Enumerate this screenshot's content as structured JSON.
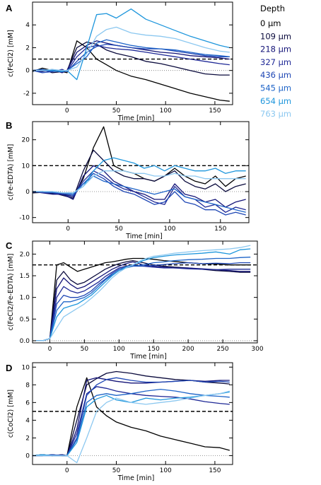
{
  "legend": {
    "title": "Depth",
    "entries": [
      {
        "label": "0  µm",
        "color": "#000000"
      },
      {
        "label": "109 µm",
        "color": "#0a0a3c"
      },
      {
        "label": "218 µm",
        "color": "#141478"
      },
      {
        "label": "327 µm",
        "color": "#1e2896"
      },
      {
        "label": "436 µm",
        "color": "#1e46b4"
      },
      {
        "label": "545 µm",
        "color": "#1e64c8"
      },
      {
        "label": "654 µm",
        "color": "#1e96dc"
      },
      {
        "label": "763 µm",
        "color": "#8cc8f0"
      }
    ]
  },
  "chart_data": [
    {
      "type": "line",
      "panel": "A",
      "xlabel": "Time [min]",
      "ylabel": "c(FeCl2) [mM]",
      "xlim": [
        -35,
        168
      ],
      "ylim": [
        -3,
        6
      ],
      "xticks": [
        0,
        50,
        100,
        150
      ],
      "yticks": [
        -2,
        0,
        2,
        4
      ],
      "hline_dashed": 1,
      "hline_dotted": 0,
      "x": [
        -35,
        -25,
        -15,
        -5,
        0,
        10,
        20,
        30,
        40,
        50,
        65,
        80,
        95,
        110,
        125,
        140,
        155,
        165
      ],
      "series": [
        {
          "color": "#000000",
          "values": [
            -0.1,
            0.2,
            0.0,
            -0.1,
            -0.2,
            2.6,
            2.0,
            1.0,
            0.5,
            0.0,
            -0.5,
            -0.8,
            -1.2,
            -1.6,
            -2.0,
            -2.3,
            -2.6,
            -2.7
          ]
        },
        {
          "color": "#0a0a3c",
          "values": [
            0.0,
            0.1,
            -0.2,
            -0.1,
            0.0,
            2.0,
            2.5,
            2.3,
            1.8,
            1.5,
            1.2,
            0.8,
            0.6,
            0.3,
            0.0,
            -0.3,
            -0.4,
            -0.4
          ]
        },
        {
          "color": "#141478",
          "values": [
            0.0,
            -0.1,
            0.1,
            -0.2,
            0.0,
            1.6,
            2.2,
            2.6,
            2.4,
            2.2,
            2.0,
            1.8,
            1.6,
            1.5,
            1.3,
            1.2,
            1.1,
            1.0
          ]
        },
        {
          "color": "#1e2896",
          "values": [
            0.0,
            0.0,
            -0.1,
            0.1,
            -0.1,
            1.2,
            2.0,
            2.2,
            2.0,
            1.9,
            1.8,
            1.6,
            1.4,
            1.2,
            1.0,
            0.8,
            0.6,
            0.5
          ]
        },
        {
          "color": "#1e46b4",
          "values": [
            0.0,
            -0.2,
            -0.1,
            0.0,
            -0.1,
            0.8,
            1.6,
            2.1,
            2.3,
            2.2,
            2.0,
            1.9,
            1.9,
            1.7,
            1.5,
            1.3,
            1.2,
            1.2
          ]
        },
        {
          "color": "#1e64c8",
          "values": [
            0.0,
            0.1,
            0.0,
            -0.1,
            0.0,
            0.6,
            1.2,
            2.4,
            2.7,
            2.5,
            2.2,
            2.0,
            1.9,
            1.8,
            1.6,
            1.4,
            1.3,
            1.2
          ]
        },
        {
          "color": "#1e96dc",
          "values": [
            0.0,
            0.0,
            0.0,
            -0.1,
            0.0,
            -0.8,
            2.0,
            4.9,
            5.0,
            4.6,
            5.4,
            4.5,
            4.0,
            3.5,
            3.0,
            2.6,
            2.2,
            2.0
          ]
        },
        {
          "color": "#8cc8f0",
          "values": [
            0.0,
            0.0,
            0.1,
            0.0,
            0.0,
            0.3,
            1.5,
            3.0,
            3.6,
            3.8,
            3.3,
            3.1,
            3.0,
            2.8,
            2.4,
            2.0,
            1.7,
            1.6
          ]
        }
      ]
    },
    {
      "type": "line",
      "panel": "B",
      "xlabel": "Time [min]",
      "ylabel": "c(Fe-EDTA) [mM]",
      "xlim": [
        -35,
        178
      ],
      "ylim": [
        -12,
        27
      ],
      "xticks": [
        0,
        50,
        100,
        150
      ],
      "yticks": [
        -10,
        0,
        10,
        20
      ],
      "hline_dashed": 10,
      "hline_dotted": 0,
      "x": [
        -35,
        -25,
        -15,
        -5,
        5,
        15,
        25,
        35,
        45,
        55,
        65,
        75,
        85,
        95,
        105,
        115,
        125,
        135,
        145,
        155,
        165,
        175
      ],
      "series": [
        {
          "color": "#000000",
          "values": [
            -0.5,
            -0.3,
            -0.8,
            -1.0,
            -2.0,
            5.0,
            17.0,
            25.0,
            10.0,
            8.0,
            7.0,
            5.0,
            4.0,
            6.0,
            9.0,
            6.0,
            4.0,
            3.0,
            6.0,
            2.0,
            5.0,
            6.0
          ]
        },
        {
          "color": "#0a0a3c",
          "values": [
            -0.5,
            0.0,
            -0.5,
            -1.5,
            -2.5,
            8.0,
            16.0,
            12.0,
            8.0,
            6.0,
            5.0,
            5.0,
            4.0,
            6.0,
            8.0,
            4.0,
            2.0,
            1.0,
            3.0,
            0.0,
            2.0,
            3.0
          ]
        },
        {
          "color": "#141478",
          "values": [
            0.0,
            -0.5,
            -1.0,
            -1.0,
            -3.0,
            6.0,
            10.0,
            8.0,
            4.0,
            2.0,
            0.0,
            -1.0,
            -3.0,
            -3.0,
            3.0,
            -1.0,
            -2.0,
            -4.0,
            -3.0,
            -6.0,
            -4.0,
            -3.0
          ]
        },
        {
          "color": "#1e2896",
          "values": [
            0.0,
            0.0,
            -0.5,
            -1.2,
            -2.0,
            4.0,
            8.0,
            6.0,
            3.0,
            1.0,
            0.0,
            -2.0,
            -4.0,
            -5.0,
            2.0,
            -2.0,
            -3.0,
            -6.0,
            -5.0,
            -8.0,
            -6.0,
            -7.0
          ]
        },
        {
          "color": "#1e46b4",
          "values": [
            0.0,
            -0.3,
            -0.5,
            -0.8,
            -1.5,
            3.0,
            7.0,
            5.0,
            2.0,
            0.0,
            -1.0,
            -3.0,
            -5.0,
            -4.0,
            0.0,
            -4.0,
            -5.0,
            -7.0,
            -7.0,
            -9.0,
            -8.0,
            -9.0
          ]
        },
        {
          "color": "#1e64c8",
          "values": [
            0.0,
            0.0,
            -0.3,
            -0.5,
            -1.0,
            3.0,
            6.0,
            4.0,
            3.0,
            2.0,
            1.0,
            0.0,
            -1.0,
            0.0,
            1.0,
            -2.0,
            -3.0,
            -4.0,
            -5.0,
            -6.0,
            -7.0,
            -8.0
          ]
        },
        {
          "color": "#1e96dc",
          "values": [
            0.0,
            0.0,
            0.0,
            -0.5,
            -0.5,
            2.0,
            8.0,
            12.0,
            13.0,
            12.0,
            11.0,
            9.0,
            10.0,
            8.0,
            10.0,
            9.0,
            8.0,
            8.0,
            9.0,
            7.0,
            8.0,
            8.0
          ]
        },
        {
          "color": "#8cc8f0",
          "values": [
            0.0,
            0.0,
            0.0,
            -0.5,
            -0.5,
            2.0,
            6.0,
            8.0,
            8.0,
            8.0,
            7.0,
            7.0,
            6.0,
            6.0,
            7.0,
            6.0,
            6.0,
            5.0,
            5.0,
            5.0,
            5.0,
            5.0
          ]
        }
      ]
    },
    {
      "type": "line",
      "panel": "C",
      "xlabel": "Time [min]",
      "ylabel": "c(FeCl2/Fe-EDTA) [mM]",
      "xlim": [
        -25,
        300
      ],
      "ylim": [
        -0.05,
        2.3
      ],
      "xticks": [
        0,
        50,
        100,
        150,
        200,
        250,
        300
      ],
      "yticks": [
        0.0,
        0.5,
        1.0,
        1.5,
        2.0
      ],
      "hline_dashed": 1.75,
      "hline_dotted": 0,
      "x": [
        -20,
        -10,
        0,
        10,
        20,
        30,
        40,
        50,
        60,
        70,
        80,
        90,
        100,
        110,
        120,
        135,
        150,
        165,
        180,
        200,
        220,
        240,
        260,
        275,
        290
      ],
      "series": [
        {
          "color": "#000000",
          "values": [
            0.0,
            0.0,
            0.05,
            1.75,
            1.8,
            1.7,
            1.6,
            1.65,
            1.7,
            1.75,
            1.8,
            1.82,
            1.85,
            1.88,
            1.9,
            1.9,
            1.88,
            1.85,
            1.83,
            1.8,
            1.78,
            1.77,
            1.75,
            1.75,
            1.75
          ]
        },
        {
          "color": "#0a0a3c",
          "values": [
            0.0,
            0.0,
            0.05,
            1.4,
            1.6,
            1.4,
            1.3,
            1.35,
            1.45,
            1.55,
            1.65,
            1.72,
            1.78,
            1.82,
            1.85,
            1.8,
            1.75,
            1.72,
            1.7,
            1.68,
            1.65,
            1.62,
            1.6,
            1.58,
            1.58
          ]
        },
        {
          "color": "#141478",
          "values": [
            0.0,
            0.0,
            0.05,
            1.2,
            1.45,
            1.3,
            1.2,
            1.25,
            1.35,
            1.45,
            1.55,
            1.65,
            1.72,
            1.78,
            1.82,
            1.75,
            1.72,
            1.7,
            1.68,
            1.68,
            1.66,
            1.64,
            1.62,
            1.6,
            1.6
          ]
        },
        {
          "color": "#1e2896",
          "values": [
            0.0,
            0.0,
            0.05,
            1.0,
            1.25,
            1.15,
            1.1,
            1.15,
            1.25,
            1.35,
            1.48,
            1.58,
            1.68,
            1.72,
            1.75,
            1.72,
            1.7,
            1.68,
            1.68,
            1.66,
            1.65,
            1.64,
            1.65,
            1.65,
            1.65
          ]
        },
        {
          "color": "#1e46b4",
          "values": [
            0.0,
            0.0,
            0.05,
            0.85,
            1.05,
            1.0,
            1.0,
            1.05,
            1.15,
            1.3,
            1.42,
            1.55,
            1.65,
            1.7,
            1.72,
            1.72,
            1.74,
            1.76,
            1.78,
            1.8,
            1.78,
            1.79,
            1.78,
            1.8,
            1.8
          ]
        },
        {
          "color": "#1e64c8",
          "values": [
            0.0,
            0.0,
            0.05,
            0.7,
            0.9,
            0.9,
            0.95,
            1.0,
            1.1,
            1.25,
            1.4,
            1.52,
            1.62,
            1.68,
            1.72,
            1.75,
            1.8,
            1.82,
            1.85,
            1.87,
            1.88,
            1.9,
            1.9,
            1.92,
            1.93
          ]
        },
        {
          "color": "#1e96dc",
          "values": [
            0.0,
            0.0,
            0.05,
            0.55,
            0.75,
            0.8,
            0.85,
            0.95,
            1.05,
            1.2,
            1.35,
            1.5,
            1.62,
            1.7,
            1.75,
            1.85,
            1.92,
            1.95,
            1.98,
            2.0,
            2.02,
            2.05,
            2.0,
            2.1,
            2.12
          ]
        },
        {
          "color": "#8cc8f0",
          "values": [
            0.0,
            0.0,
            0.05,
            0.3,
            0.55,
            0.65,
            0.75,
            0.85,
            0.98,
            1.12,
            1.28,
            1.45,
            1.58,
            1.68,
            1.75,
            1.88,
            1.95,
            1.98,
            2.02,
            2.05,
            2.08,
            2.1,
            2.12,
            2.15,
            2.2
          ]
        }
      ]
    },
    {
      "type": "line",
      "panel": "D",
      "xlabel": "Time [min]",
      "ylabel": "c(CoCl2) [mM]",
      "xlim": [
        -35,
        168
      ],
      "ylim": [
        -1,
        10.5
      ],
      "xticks": [
        0,
        50,
        100,
        150
      ],
      "yticks": [
        0,
        2,
        4,
        6,
        8,
        10
      ],
      "hline_dashed": 5,
      "hline_dotted": 0,
      "x": [
        -35,
        -25,
        -15,
        -5,
        0,
        10,
        20,
        30,
        40,
        50,
        65,
        80,
        95,
        110,
        125,
        140,
        155,
        165
      ],
      "series": [
        {
          "color": "#000000",
          "values": [
            0.0,
            0.1,
            0.0,
            0.1,
            0.0,
            5.5,
            8.8,
            5.5,
            4.5,
            3.8,
            3.2,
            2.8,
            2.2,
            1.8,
            1.4,
            1.0,
            0.9,
            0.6
          ]
        },
        {
          "color": "#0a0a3c",
          "values": [
            0.0,
            0.0,
            0.1,
            0.0,
            0.0,
            4.0,
            8.0,
            8.7,
            9.3,
            9.5,
            9.3,
            9.0,
            8.8,
            8.6,
            8.5,
            8.3,
            8.2,
            8.1
          ]
        },
        {
          "color": "#141478",
          "values": [
            0.0,
            0.1,
            0.0,
            0.0,
            0.0,
            3.0,
            8.5,
            8.8,
            8.6,
            8.4,
            8.2,
            8.2,
            8.3,
            8.4,
            8.5,
            8.4,
            8.5,
            8.5
          ]
        },
        {
          "color": "#1e2896",
          "values": [
            0.0,
            0.0,
            0.0,
            0.1,
            0.0,
            2.5,
            7.0,
            7.8,
            7.6,
            7.3,
            7.0,
            6.8,
            6.7,
            6.6,
            6.4,
            6.1,
            5.9,
            5.8
          ]
        },
        {
          "color": "#1e46b4",
          "values": [
            0.0,
            0.0,
            0.1,
            0.0,
            0.0,
            2.0,
            6.8,
            8.0,
            8.6,
            8.8,
            8.5,
            8.3,
            8.3,
            8.4,
            8.5,
            8.3,
            8.4,
            8.3
          ]
        },
        {
          "color": "#1e64c8",
          "values": [
            0.0,
            0.0,
            0.0,
            0.0,
            0.0,
            1.8,
            6.0,
            6.8,
            7.0,
            6.8,
            7.0,
            7.3,
            7.5,
            7.3,
            7.0,
            6.8,
            6.7,
            6.6
          ]
        },
        {
          "color": "#1e96dc",
          "values": [
            0.0,
            0.1,
            0.0,
            0.0,
            0.0,
            1.5,
            5.5,
            6.4,
            6.8,
            6.3,
            6.0,
            6.5,
            6.3,
            6.5,
            6.6,
            6.8,
            7.0,
            7.2
          ]
        },
        {
          "color": "#8cc8f0",
          "values": [
            0.0,
            0.0,
            0.0,
            0.0,
            0.0,
            -0.8,
            2.0,
            5.0,
            6.0,
            6.5,
            6.0,
            5.8,
            6.0,
            6.2,
            6.5,
            6.8,
            7.0,
            7.3
          ]
        }
      ]
    }
  ]
}
